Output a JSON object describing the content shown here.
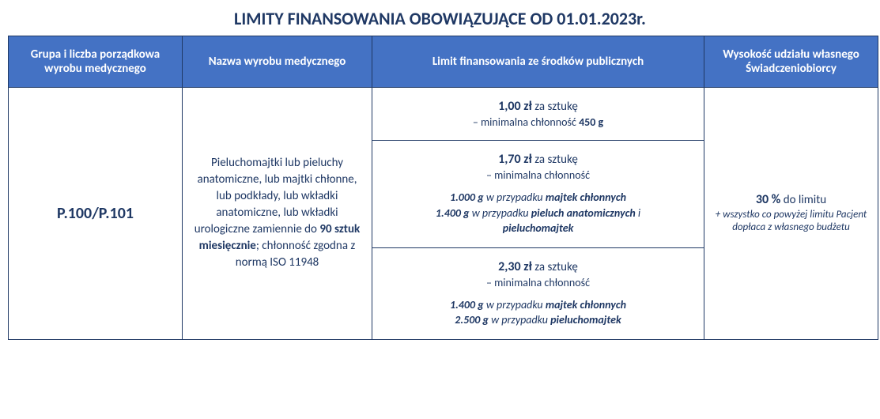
{
  "title": "LIMITY FINANSOWANIA OBOWIĄZUJĄCE OD 01.01.2023r.",
  "colors": {
    "header_bg": "#4472c4",
    "header_text": "#ffffff",
    "border": "#1f3864",
    "text": "#1f3864",
    "background": "#ffffff"
  },
  "headers": {
    "col1": "Grupa i liczba porządkowa wyrobu medycznego",
    "col2": "Nazwa wyrobu medycznego",
    "col3": "Limit finansowania ze środków publicznych",
    "col4": "Wysokość udziału własnego Świadczeniobiorcy"
  },
  "row": {
    "group_code": "P.100/P.101",
    "product": {
      "part1": "Pieluchomajtki lub pieluchy anatomiczne, lub majtki chłonne, lub podkłady, lub wkładki anatomiczne, lub wkładki urologiczne zamiennie do ",
      "bold": "90 sztuk miesięcznie",
      "part2": "; chłonność zgodna z normą ISO 11948"
    },
    "limits": [
      {
        "price": "1,00 zł",
        "suffix": " za sztukę",
        "subline_prefix": "– minimalna chłonność ",
        "subline_bold": "450 g",
        "details": []
      },
      {
        "price": "1,70 zł",
        "suffix": " za sztukę",
        "subline_prefix": "– minimalna chłonność",
        "subline_bold": "",
        "details": [
          {
            "weight": "1.000 g",
            "mid": " w przypadku ",
            "bold": "majtek chłonnych",
            "tail": ""
          },
          {
            "weight": "1.400 g",
            "mid": " w przypadku ",
            "bold": "pieluch anatomicznych",
            "tail": " i "
          },
          {
            "weight": "",
            "mid": "",
            "bold": "pieluchomajtek",
            "tail": ""
          }
        ]
      },
      {
        "price": "2,30 zł",
        "suffix": " za sztukę",
        "subline_prefix": "– minimalna chłonność",
        "subline_bold": "",
        "details": [
          {
            "weight": "1.400 g",
            "mid": " w przypadku ",
            "bold": "majtek chłonnych",
            "tail": ""
          },
          {
            "weight": "2.500 g",
            "mid": " w przypadku ",
            "bold": "pieluchomajtek",
            "tail": ""
          }
        ]
      }
    ],
    "share": {
      "main_bold": "30 %",
      "main_suffix": " do limitu",
      "sub": "+ wszystko co powyżej limitu Pacjent dopłaca z własnego budżetu"
    }
  }
}
